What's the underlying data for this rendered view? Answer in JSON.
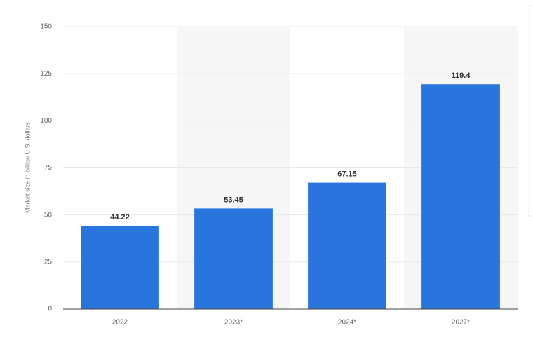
{
  "chart_data": {
    "type": "bar",
    "y_label": "Market size in billion U.S. dollars",
    "categories": [
      "2022",
      "2023*",
      "2024*",
      "2027*"
    ],
    "values": [
      44.22,
      53.45,
      67.15,
      119.4
    ],
    "color": "#2876dd",
    "ylim": [
      0,
      150
    ],
    "yticks": [
      0,
      25,
      50,
      75,
      100,
      125,
      150
    ],
    "grid": true
  }
}
